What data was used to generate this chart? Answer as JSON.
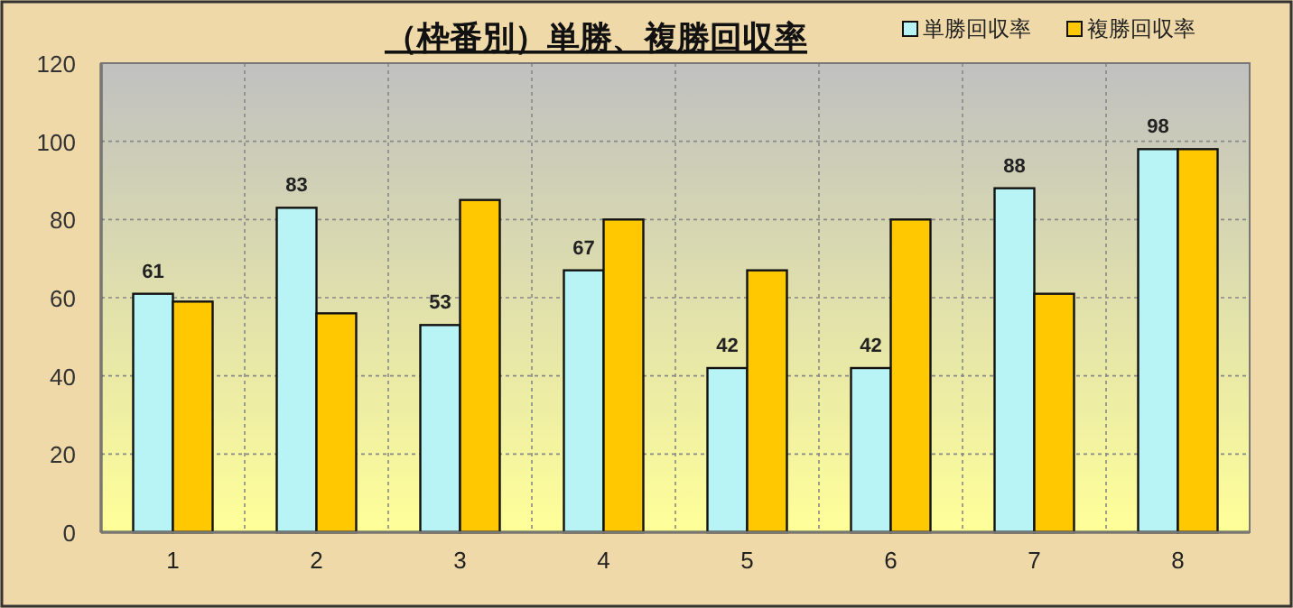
{
  "chart_data": {
    "type": "bar",
    "title": "（枠番別）単勝、複勝回収率",
    "categories": [
      "1",
      "2",
      "3",
      "4",
      "5",
      "6",
      "7",
      "8"
    ],
    "series": [
      {
        "name": "単勝回収率",
        "color": "#b8f4f6",
        "values": [
          61,
          83,
          53,
          67,
          42,
          42,
          88,
          98
        ],
        "value_labels": [
          "61",
          "83",
          "53",
          "67",
          "42",
          "42",
          "88",
          "98"
        ]
      },
      {
        "name": "複勝回収率",
        "color": "#ffc800",
        "values": [
          59,
          56,
          85,
          80,
          67,
          80,
          61,
          98
        ]
      }
    ],
    "ylim": [
      0,
      120
    ],
    "yticks": [
      0,
      20,
      40,
      60,
      80,
      100,
      120
    ],
    "grid": true,
    "legend": "top right"
  }
}
